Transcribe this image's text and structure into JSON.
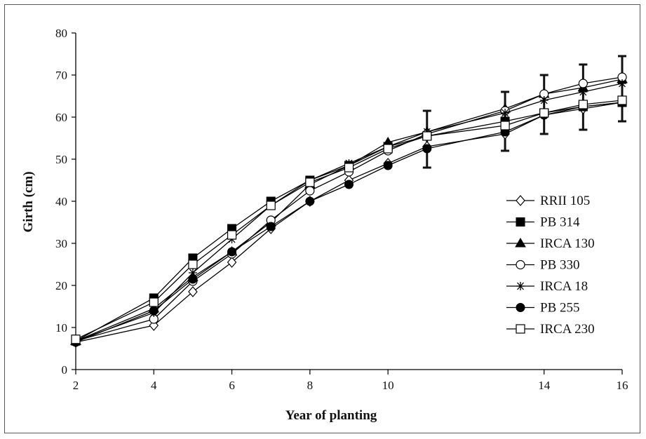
{
  "chart_data": {
    "type": "line",
    "title": "",
    "xlabel": "Year of planting",
    "ylabel": "Girth (cm)",
    "xlim": [
      2,
      16
    ],
    "ylim": [
      0,
      80
    ],
    "x_ticks": [
      2,
      4,
      6,
      8,
      10,
      14,
      16
    ],
    "y_ticks": [
      0,
      10,
      20,
      30,
      40,
      50,
      60,
      70,
      80
    ],
    "grid": false,
    "legend_position": "right",
    "x": [
      2,
      4,
      5,
      6,
      7,
      8,
      9,
      10,
      11,
      13,
      14,
      15,
      16
    ],
    "series": [
      {
        "name": "RRII 105",
        "marker": "diamond-open",
        "values": [
          6.5,
          10.5,
          18.5,
          25.5,
          33.5,
          40,
          45,
          49,
          53,
          56,
          60.5,
          62,
          63.5
        ]
      },
      {
        "name": "PB 314",
        "marker": "square-filled",
        "values": [
          6.8,
          17,
          26.5,
          33.5,
          40,
          45,
          48.5,
          53,
          55.5,
          59,
          61,
          62.5,
          63.5
        ]
      },
      {
        "name": "IRCA 130",
        "marker": "triangle-filled",
        "values": [
          6.8,
          14.5,
          22,
          28,
          35,
          44,
          48.5,
          54,
          56.5,
          62,
          65.5,
          67,
          69
        ]
      },
      {
        "name": "PB 330",
        "marker": "circle-open",
        "values": [
          6.8,
          12,
          21,
          27.5,
          35.5,
          42.5,
          47,
          52,
          56,
          61.5,
          65.5,
          68,
          69.5
        ]
      },
      {
        "name": "IRCA 18",
        "marker": "asterisk",
        "values": [
          6.8,
          13.5,
          23,
          31,
          39,
          45,
          49,
          53,
          56.5,
          61,
          64,
          66,
          68
        ]
      },
      {
        "name": "PB 255",
        "marker": "circle-filled",
        "values": [
          6.5,
          14,
          21.5,
          28,
          34,
          40,
          44,
          48.5,
          52.5,
          56.5,
          60.5,
          62.5,
          63.5
        ]
      },
      {
        "name": "IRCA 230",
        "marker": "square-open",
        "values": [
          7.2,
          16,
          25,
          32,
          39,
          44.5,
          48,
          52.5,
          55.5,
          58,
          61,
          63,
          64
        ]
      }
    ],
    "error_bars": [
      {
        "x": 11,
        "low": 48,
        "high": 61.5
      },
      {
        "x": 13,
        "low": 52,
        "high": 66
      },
      {
        "x": 14,
        "low": 56,
        "high": 70
      },
      {
        "x": 15,
        "low": 57,
        "high": 72.5
      },
      {
        "x": 16,
        "low": 59,
        "high": 74.5
      }
    ]
  }
}
